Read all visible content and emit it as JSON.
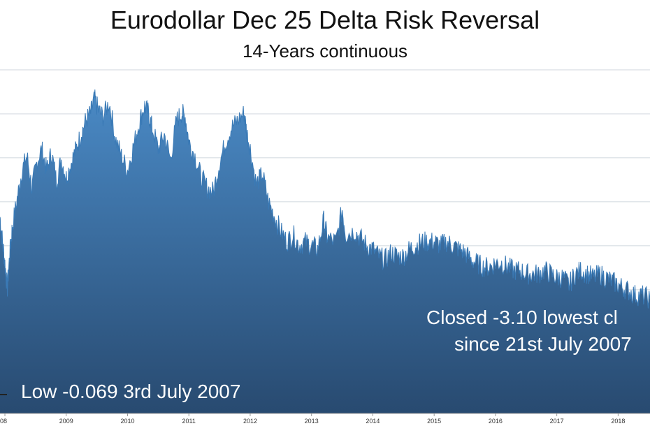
{
  "chart_data": {
    "type": "area",
    "title": "Eurodollar Dec 25 Delta Risk Reversal",
    "subtitle": "14-Years continuous",
    "xlabel": "",
    "ylabel": "",
    "x_tick_labels": [
      "08",
      "2009",
      "2010",
      "2011",
      "2012",
      "2013",
      "2014",
      "2015",
      "2016",
      "2017",
      "2018"
    ],
    "x_range": [
      2007.92,
      2018.52
    ],
    "y_range": [
      0,
      100
    ],
    "grid": "horizontal",
    "series": [
      {
        "values": [
          [
            2007.92,
            55
          ],
          [
            2007.96,
            48
          ],
          [
            2008.0,
            42
          ],
          [
            2008.04,
            35
          ],
          [
            2008.08,
            45
          ],
          [
            2008.12,
            52
          ],
          [
            2008.2,
            60
          ],
          [
            2008.28,
            68
          ],
          [
            2008.36,
            72
          ],
          [
            2008.44,
            63
          ],
          [
            2008.52,
            70
          ],
          [
            2008.6,
            74
          ],
          [
            2008.68,
            68
          ],
          [
            2008.76,
            73
          ],
          [
            2008.84,
            65
          ],
          [
            2008.92,
            71
          ],
          [
            2009.0,
            66
          ],
          [
            2009.08,
            70
          ],
          [
            2009.16,
            74
          ],
          [
            2009.24,
            78
          ],
          [
            2009.32,
            82
          ],
          [
            2009.4,
            84
          ],
          [
            2009.46,
            88
          ],
          [
            2009.52,
            85
          ],
          [
            2009.6,
            83
          ],
          [
            2009.7,
            87
          ],
          [
            2009.8,
            77
          ],
          [
            2009.9,
            72
          ],
          [
            2010.0,
            68
          ],
          [
            2010.1,
            75
          ],
          [
            2010.2,
            82
          ],
          [
            2010.28,
            86
          ],
          [
            2010.34,
            84
          ],
          [
            2010.4,
            80
          ],
          [
            2010.5,
            74
          ],
          [
            2010.6,
            78
          ],
          [
            2010.7,
            71
          ],
          [
            2010.8,
            82
          ],
          [
            2010.88,
            84
          ],
          [
            2010.94,
            83
          ],
          [
            2011.0,
            76
          ],
          [
            2011.1,
            72
          ],
          [
            2011.2,
            66
          ],
          [
            2011.3,
            63
          ],
          [
            2011.4,
            62
          ],
          [
            2011.5,
            70
          ],
          [
            2011.6,
            76
          ],
          [
            2011.7,
            80
          ],
          [
            2011.8,
            82
          ],
          [
            2011.9,
            84
          ],
          [
            2011.94,
            79
          ],
          [
            2012.0,
            74
          ],
          [
            2012.1,
            64
          ],
          [
            2012.2,
            67
          ],
          [
            2012.3,
            59
          ],
          [
            2012.4,
            55
          ],
          [
            2012.5,
            51
          ],
          [
            2012.6,
            48
          ],
          [
            2012.7,
            50
          ],
          [
            2012.8,
            47
          ],
          [
            2012.9,
            48
          ],
          [
            2013.0,
            47
          ],
          [
            2013.1,
            46
          ],
          [
            2013.2,
            54
          ],
          [
            2013.26,
            49
          ],
          [
            2013.4,
            48
          ],
          [
            2013.5,
            57
          ],
          [
            2013.56,
            50
          ],
          [
            2013.7,
            51
          ],
          [
            2013.8,
            49
          ],
          [
            2013.9,
            47
          ],
          [
            2014.0,
            46
          ],
          [
            2014.1,
            44
          ],
          [
            2014.2,
            43
          ],
          [
            2014.3,
            45
          ],
          [
            2014.4,
            44
          ],
          [
            2014.5,
            44
          ],
          [
            2014.6,
            46
          ],
          [
            2014.7,
            47
          ],
          [
            2014.8,
            48
          ],
          [
            2014.9,
            48
          ],
          [
            2015.0,
            48
          ],
          [
            2015.1,
            47
          ],
          [
            2015.2,
            48
          ],
          [
            2015.3,
            47
          ],
          [
            2015.4,
            46
          ],
          [
            2015.5,
            45
          ],
          [
            2015.6,
            43
          ],
          [
            2015.7,
            42
          ],
          [
            2015.8,
            41
          ],
          [
            2015.9,
            41
          ],
          [
            2016.0,
            42
          ],
          [
            2016.1,
            42
          ],
          [
            2016.2,
            41
          ],
          [
            2016.3,
            40
          ],
          [
            2016.4,
            40
          ],
          [
            2016.5,
            39
          ],
          [
            2016.6,
            39
          ],
          [
            2016.7,
            39
          ],
          [
            2016.8,
            40
          ],
          [
            2016.9,
            39
          ],
          [
            2017.0,
            38
          ],
          [
            2017.1,
            38
          ],
          [
            2017.2,
            36
          ],
          [
            2017.3,
            39
          ],
          [
            2017.4,
            40
          ],
          [
            2017.5,
            39
          ],
          [
            2017.6,
            38
          ],
          [
            2017.7,
            39
          ],
          [
            2017.8,
            38
          ],
          [
            2017.9,
            37
          ],
          [
            2018.0,
            36
          ],
          [
            2018.1,
            35
          ],
          [
            2018.2,
            34
          ],
          [
            2018.3,
            33
          ],
          [
            2018.4,
            33
          ],
          [
            2018.52,
            32
          ]
        ]
      }
    ],
    "annotations": [
      "Closed -3.10 lowest cl",
      "since 21st July 2007",
      "Low -0.069 3rd July 2007"
    ],
    "colors": {
      "area_top": "#4a8ac6",
      "area_bottom": "#284a70",
      "line": "#3a7ab6",
      "grid": "#cfd6de"
    }
  }
}
